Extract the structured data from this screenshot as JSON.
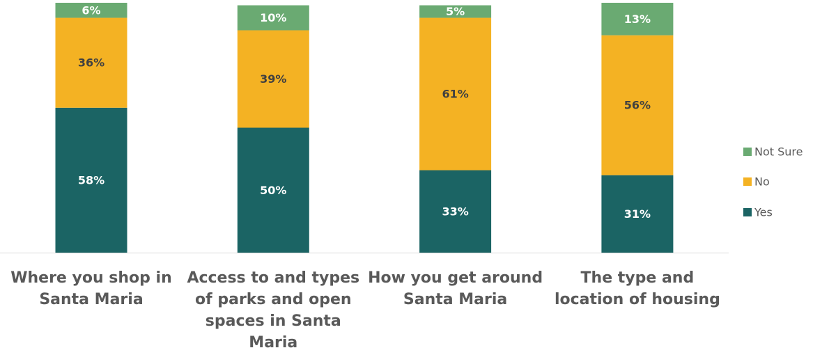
{
  "chart_data": {
    "type": "stacked_bar",
    "categories": [
      "Where you shop in Santa Maria",
      "Access to and types of parks and open spaces in Santa Maria",
      "How you get around Santa Maria",
      "The type and location of housing"
    ],
    "series": [
      {
        "name": "Yes",
        "color": "#1b6464",
        "values": [
          58,
          50,
          33,
          31
        ],
        "value_labels": [
          "58%",
          "50%",
          "33%",
          "31%"
        ]
      },
      {
        "name": "No",
        "color": "#f4b223",
        "values": [
          36,
          39,
          61,
          56
        ],
        "value_labels": [
          "36%",
          "39%",
          "61%",
          "56%"
        ]
      },
      {
        "name": "Not Sure",
        "color": "#6aaa72",
        "values": [
          6,
          10,
          5,
          13
        ],
        "value_labels": [
          "6%",
          "10%",
          "5%",
          "13%"
        ]
      }
    ],
    "ylim": [
      0,
      100
    ],
    "legend": "right"
  }
}
